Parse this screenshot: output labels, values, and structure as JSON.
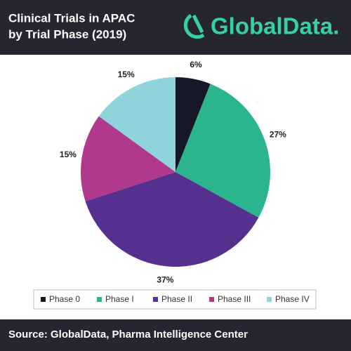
{
  "chart_data": {
    "type": "pie",
    "title": [
      "Clinical Trials in APAC",
      "by Trial Phase (2019)"
    ],
    "logo": "GlobalData.",
    "categories": [
      "Phase 0",
      "Phase I",
      "Phase II",
      "Phase III",
      "Phase IV"
    ],
    "values": [
      6,
      27,
      37,
      15,
      15
    ],
    "value_labels": [
      "6%",
      "27%",
      "37%",
      "15%",
      "15%"
    ],
    "colors": [
      "#161827",
      "#2bb58f",
      "#56308f",
      "#b0398d",
      "#8fd4db"
    ],
    "legend": "bottom",
    "source": "Source: GlobalData, Pharma Intelligence Center"
  }
}
